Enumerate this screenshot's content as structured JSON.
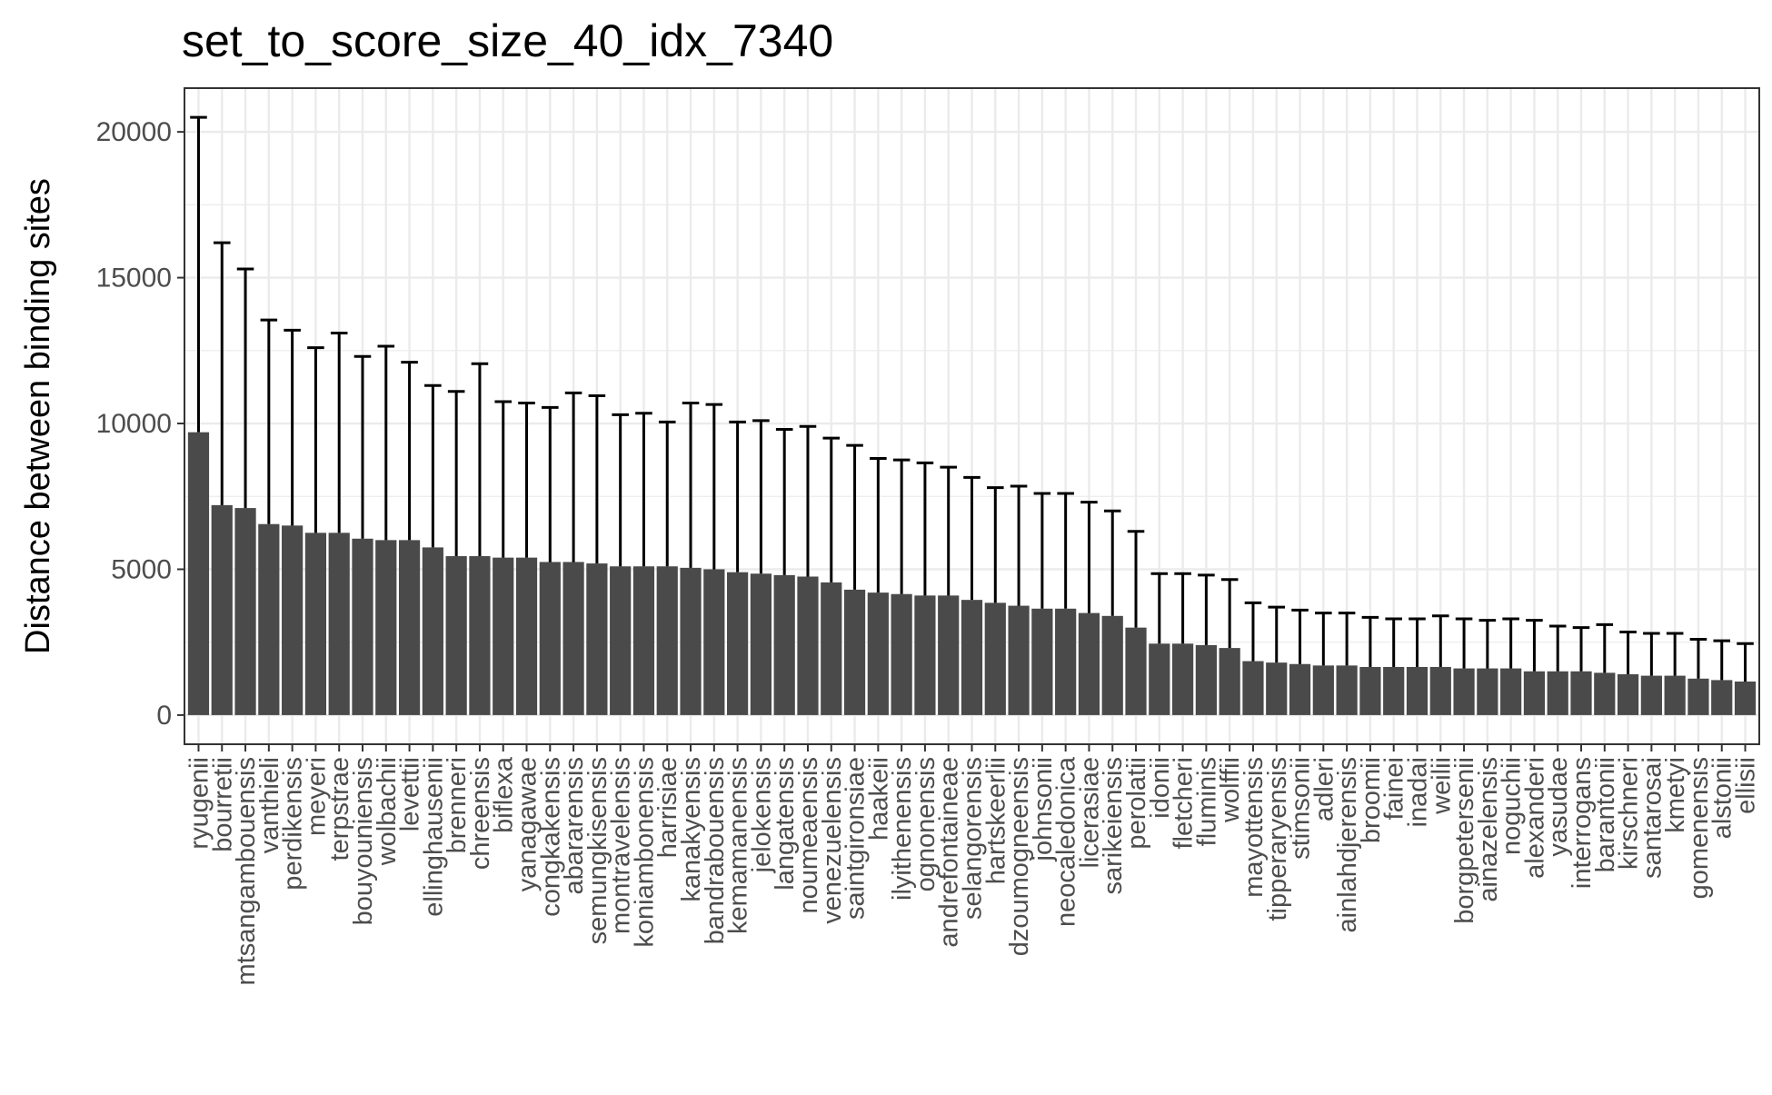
{
  "chart_data": {
    "type": "bar",
    "title": "set_to_score_size_40_idx_7340",
    "xlabel": "",
    "ylabel": "Distance between binding sites",
    "ylim": [
      -1000,
      21500
    ],
    "yticks": [
      0,
      5000,
      10000,
      15000,
      20000
    ],
    "grid": true,
    "bar_color": "#4a4a4a",
    "errorbar_color": "#000000",
    "grid_color": "#ebebeb",
    "panel_border_color": "#333333",
    "categories": [
      "ryugenii",
      "bourretii",
      "mtsangambouensis",
      "vanthieli",
      "perdikensis",
      "meyeri",
      "terpstrae",
      "bouyouniensis",
      "wolbachii",
      "levettii",
      "ellinghausenii",
      "brenneri",
      "chreensis",
      "biflexa",
      "yanagawae",
      "congkakensis",
      "abararensis",
      "semungkisensis",
      "montravelensis",
      "koniambonensis",
      "harrisiae",
      "kanakyensis",
      "bandrabouensis",
      "kemamanensis",
      "jelokensis",
      "langatensis",
      "noumeaensis",
      "venezuelensis",
      "saintgironsiae",
      "haakeii",
      "ilyithenensis",
      "ognonensis",
      "andrefontaineae",
      "selangorensis",
      "hartskeerlii",
      "dzoumogneensis",
      "johnsonii",
      "neocaledonica",
      "licerasiae",
      "sarikeiensis",
      "perolatii",
      "idonii",
      "fletcheri",
      "fluminis",
      "wolffii",
      "mayottensis",
      "tipperaryensis",
      "stimsonii",
      "adleri",
      "ainlahdjerensis",
      "broomii",
      "fainei",
      "inadai",
      "weilii",
      "borgpetersenii",
      "ainazelensis",
      "noguchii",
      "alexanderi",
      "yasudae",
      "interrogans",
      "barantonii",
      "kirschneri",
      "santarosai",
      "kmetyi",
      "gomenensis",
      "alstonii",
      "ellisii"
    ],
    "values": [
      9700,
      7200,
      7100,
      6550,
      6500,
      6250,
      6250,
      6050,
      6000,
      6000,
      5750,
      5450,
      5450,
      5400,
      5400,
      5250,
      5250,
      5200,
      5100,
      5100,
      5100,
      5050,
      5000,
      4900,
      4850,
      4800,
      4750,
      4550,
      4300,
      4200,
      4150,
      4100,
      4100,
      3950,
      3850,
      3750,
      3650,
      3650,
      3500,
      3400,
      3000,
      2450,
      2450,
      2400,
      2300,
      1850,
      1800,
      1750,
      1700,
      1700,
      1650,
      1650,
      1650,
      1650,
      1600,
      1600,
      1600,
      1500,
      1500,
      1500,
      1450,
      1400,
      1350,
      1350,
      1250,
      1200,
      1150
    ],
    "error_upper": [
      20500,
      16200,
      15300,
      13550,
      13200,
      12600,
      13100,
      12300,
      12650,
      12100,
      11300,
      11100,
      12050,
      10750,
      10700,
      10550,
      11050,
      10950,
      10300,
      10350,
      10050,
      10700,
      10650,
      10050,
      10100,
      9800,
      9900,
      9500,
      9250,
      8800,
      8750,
      8650,
      8500,
      8150,
      7800,
      7850,
      7600,
      7600,
      7300,
      7000,
      6300,
      4850,
      4850,
      4800,
      4650,
      3850,
      3700,
      3600,
      3500,
      3500,
      3350,
      3300,
      3300,
      3400,
      3300,
      3250,
      3300,
      3250,
      3050,
      3000,
      3100,
      2850,
      2800,
      2800,
      2600,
      2550,
      2450
    ]
  }
}
